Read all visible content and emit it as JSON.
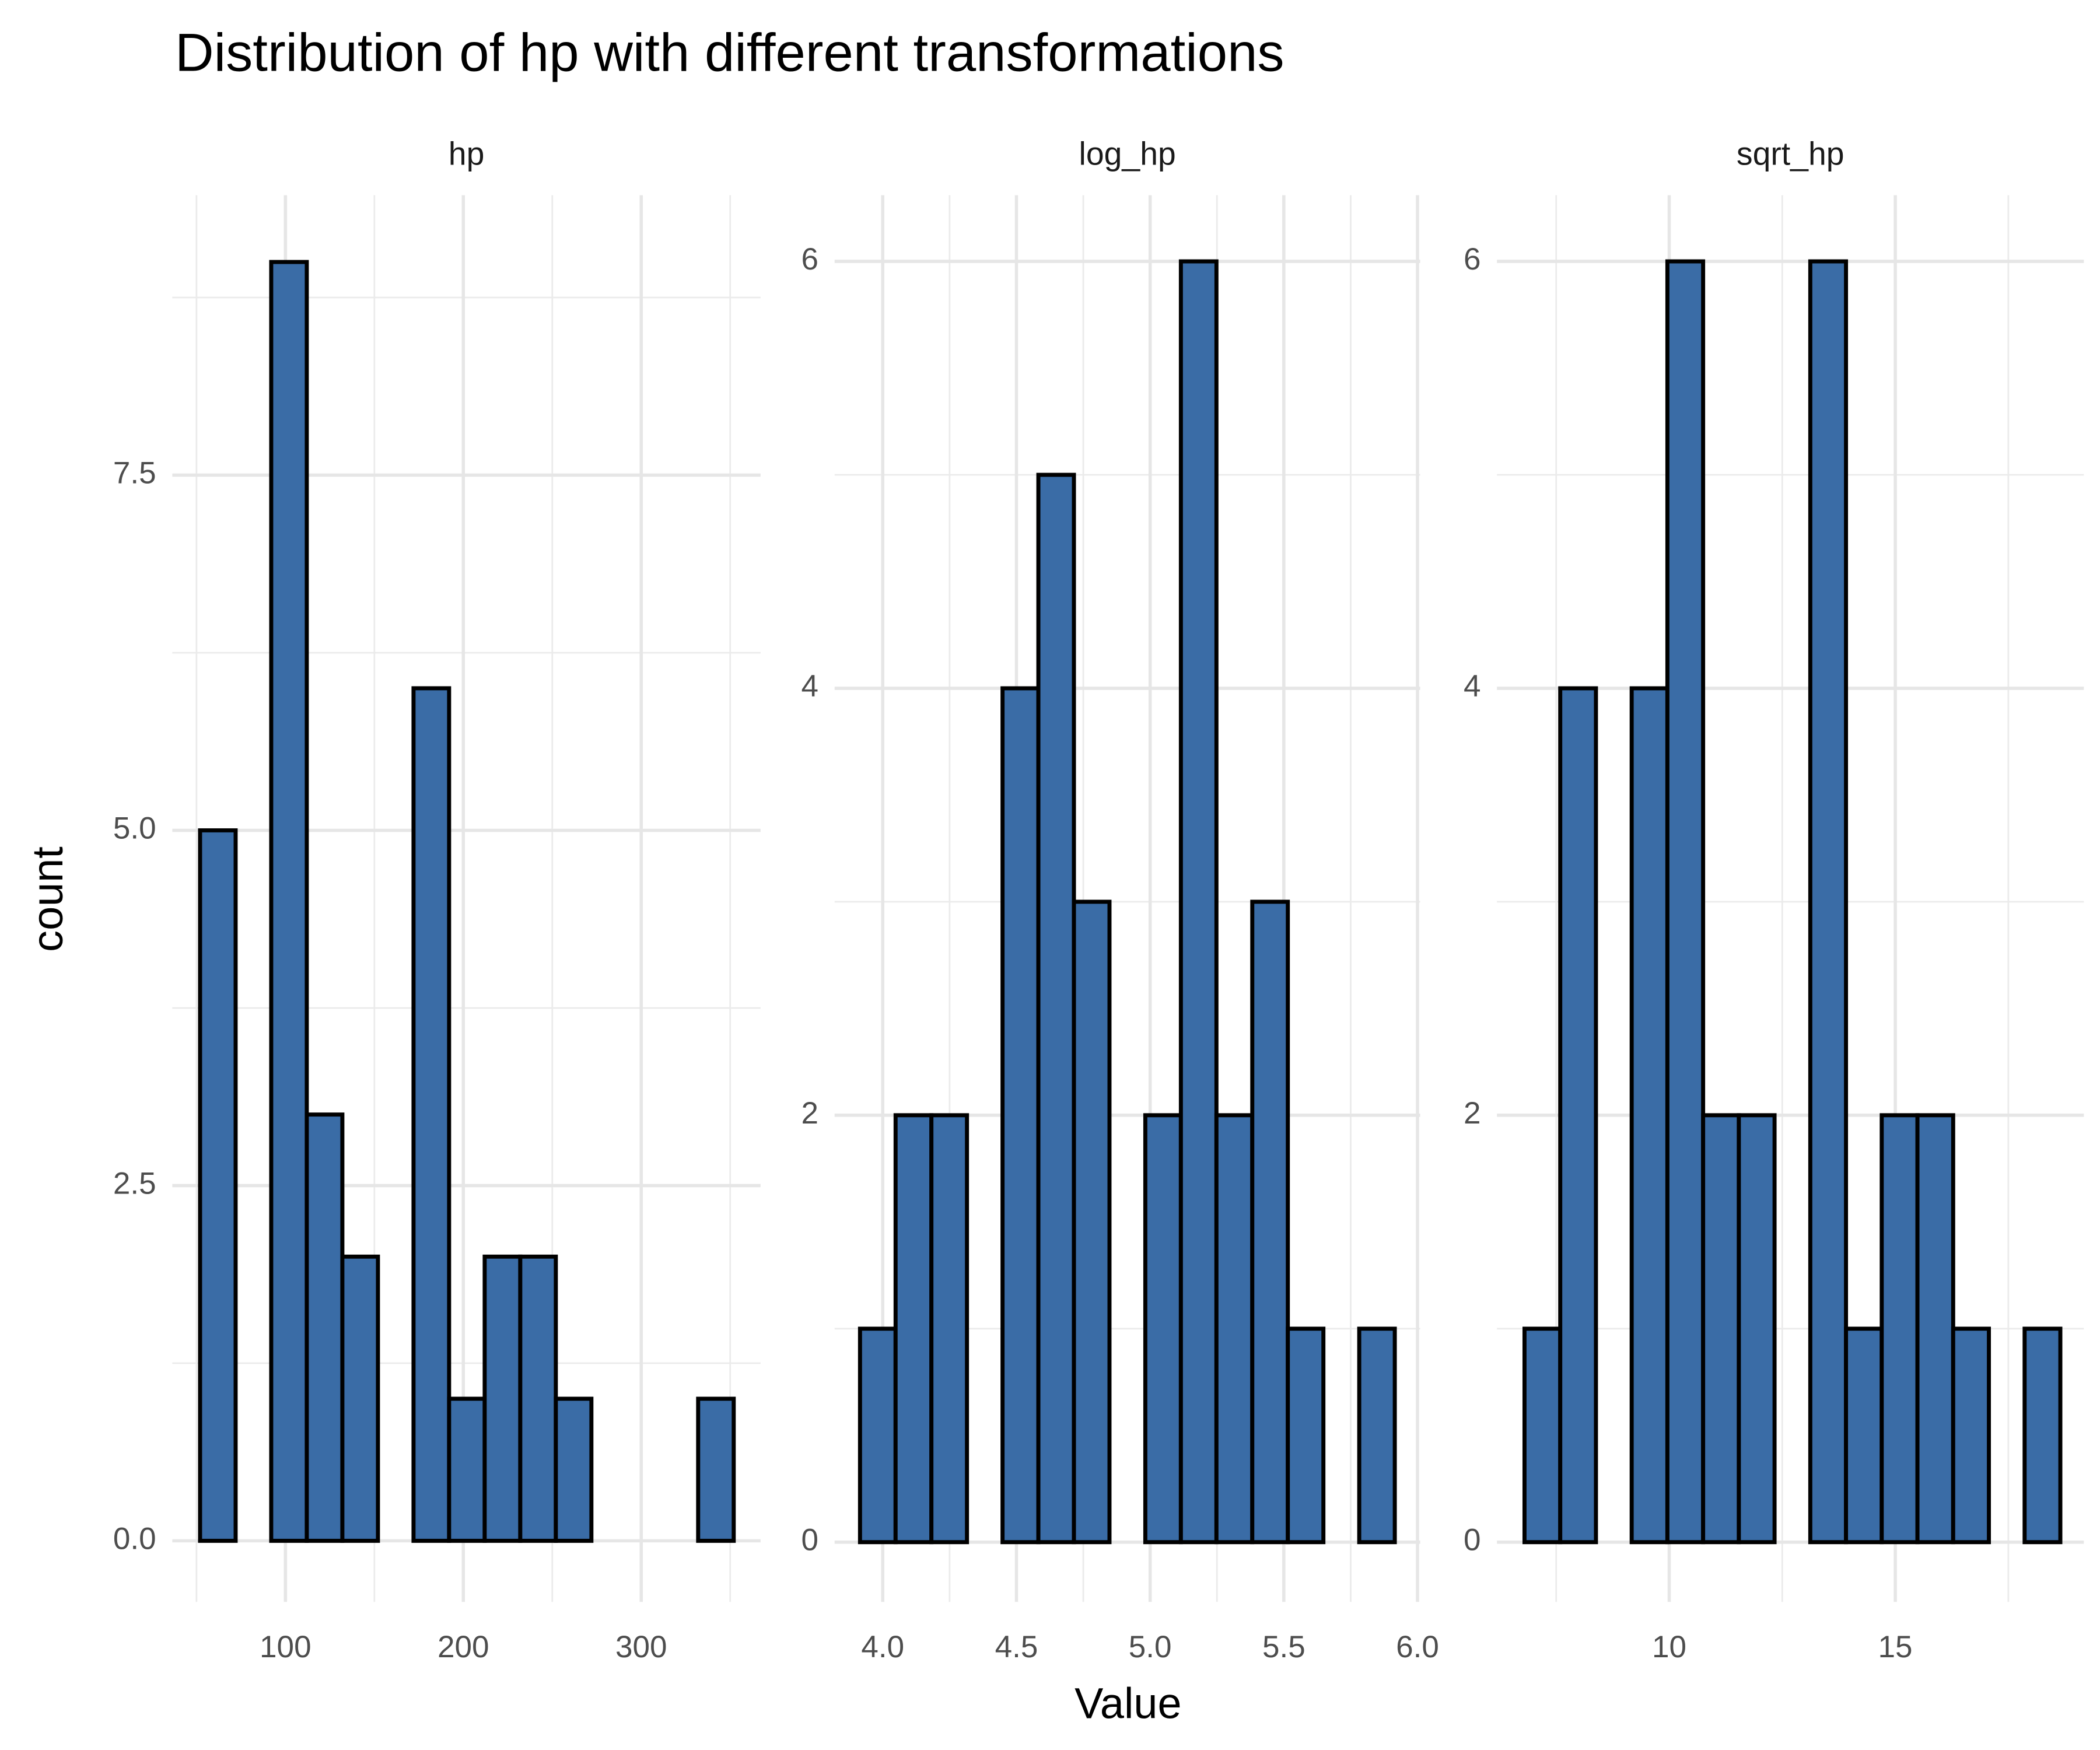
{
  "title": "Distribution of hp with different transformations",
  "xlabel": "Value",
  "ylabel": "count",
  "chart_data": [
    {
      "type": "histogram",
      "title": "hp",
      "color": "#3a6ca6",
      "edge_color": "#000000",
      "grid": true,
      "bins": [
        52,
        72,
        92,
        112,
        132,
        152,
        172,
        192,
        212,
        232,
        252,
        272,
        292,
        312,
        332,
        352
      ],
      "values": [
        5,
        0,
        9,
        3,
        2,
        0,
        6,
        1,
        2,
        2,
        1,
        0,
        0,
        0,
        1
      ],
      "xlim": [
        36.4,
        367.1
      ],
      "xticks": [
        100,
        200,
        300
      ],
      "ylim": [
        -0.43,
        9.47
      ],
      "yticks": [
        {
          "value": 0,
          "label": "0.0"
        },
        2.5,
        {
          "value": 5,
          "label": "5.0"
        },
        7.5
      ]
    },
    {
      "type": "histogram",
      "title": "log_hp",
      "color": "#3a6ca6",
      "edge_color": "#000000",
      "grid": true,
      "bins": [
        3.915,
        4.048,
        4.182,
        4.315,
        4.448,
        4.582,
        4.715,
        4.848,
        4.982,
        5.115,
        5.248,
        5.382,
        5.515,
        5.648,
        5.782,
        5.915
      ],
      "values": [
        1,
        2,
        2,
        0,
        4,
        5,
        3,
        0,
        2,
        6,
        2,
        3,
        1,
        0,
        1
      ],
      "xlim": [
        3.82,
        6.01
      ],
      "xticks": [
        {
          "value": 4,
          "label": "4.0"
        },
        4.5,
        {
          "value": 5,
          "label": "5.0"
        },
        5.5,
        {
          "value": 6,
          "label": "6.0"
        }
      ],
      "ylim": [
        -0.28,
        6.31
      ],
      "yticks": [
        0,
        2,
        4,
        6
      ]
    },
    {
      "type": "histogram",
      "title": "sqrt_hp",
      "color": "#3a6ca6",
      "edge_color": "#000000",
      "grid": true,
      "bins": [
        6.8,
        7.59,
        8.38,
        9.17,
        9.96,
        10.75,
        11.54,
        12.33,
        13.12,
        13.91,
        14.7,
        15.49,
        16.28,
        17.07,
        17.86,
        18.65
      ],
      "values": [
        1,
        4,
        0,
        4,
        6,
        2,
        2,
        0,
        6,
        1,
        2,
        2,
        1,
        0,
        1
      ],
      "xlim": [
        6.19,
        19.17
      ],
      "xticks": [
        10,
        15
      ],
      "ylim": [
        -0.28,
        6.31
      ],
      "yticks": [
        0,
        2,
        4,
        6
      ]
    }
  ]
}
